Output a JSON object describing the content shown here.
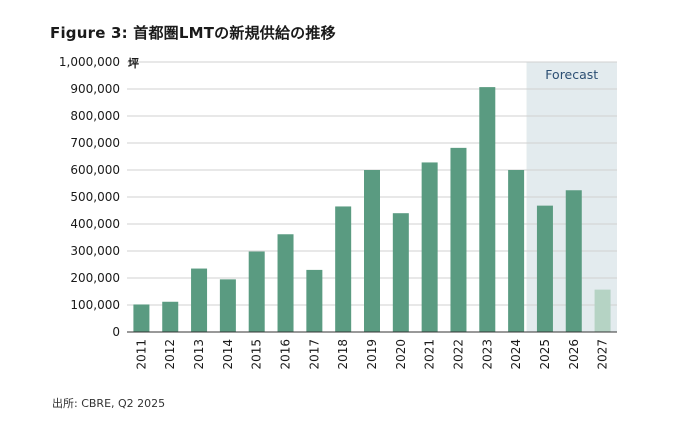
{
  "figure": {
    "title": "Figure 3: 首都圏LMTの新規供給の推移",
    "source": "出所: CBRE, Q2 2025"
  },
  "chart_data": {
    "type": "bar",
    "unit": "坪",
    "forecast_label": "Forecast",
    "categories": [
      "2011",
      "2012",
      "2013",
      "2014",
      "2015",
      "2016",
      "2017",
      "2018",
      "2019",
      "2020",
      "2021",
      "2022",
      "2023",
      "2024",
      "2025",
      "2026",
      "2027"
    ],
    "values": [
      102000,
      112000,
      235000,
      195000,
      298000,
      362000,
      230000,
      465000,
      600000,
      440000,
      628000,
      682000,
      907000,
      600000,
      468000,
      525000,
      157000
    ],
    "ylim": [
      0,
      1000000
    ],
    "yticks": [
      0,
      100000,
      200000,
      300000,
      400000,
      500000,
      600000,
      700000,
      800000,
      900000,
      1000000
    ],
    "ytick_labels": [
      "0",
      "100,000",
      "200,000",
      "300,000",
      "400,000",
      "500,000",
      "600,000",
      "700,000",
      "800,000",
      "900,000",
      "1,000,000"
    ],
    "forecast_start": "2025",
    "grid": "horizontal",
    "colors": {
      "bar": "#5a9b81",
      "bar_partial": "#b5d3c4",
      "forecast_bg": "#e3ebee",
      "grid": "#d0d0d0",
      "forecast_text": "#2c4f73"
    }
  }
}
